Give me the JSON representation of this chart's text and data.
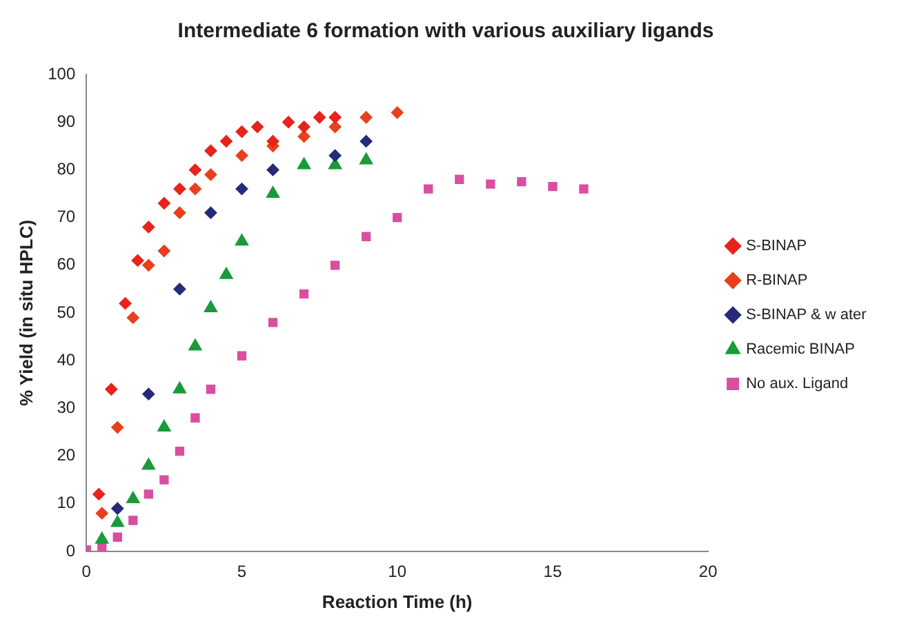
{
  "chart_data": {
    "type": "scatter",
    "title": "Intermediate 6 formation with various auxiliary ligands",
    "xlabel": "Reaction Time (h)",
    "ylabel": "% Yield (in situ HPLC)",
    "xlim": [
      0,
      20
    ],
    "xticks": [
      0,
      5,
      10,
      15,
      20
    ],
    "ylim": [
      0,
      100
    ],
    "yticks": [
      0,
      10,
      20,
      30,
      40,
      50,
      60,
      70,
      80,
      90,
      100
    ],
    "grid": false,
    "legend": "right",
    "series": [
      {
        "name": "S-BINAP",
        "color": "#e8231c",
        "marker": "diamond",
        "x": [
          0.4,
          0.8,
          1.25,
          1.65,
          2,
          2.5,
          3,
          3.5,
          4,
          4.5,
          5,
          5.5,
          6,
          6.5,
          7,
          7.5,
          8
        ],
        "values": [
          12,
          34,
          52,
          61,
          68,
          73,
          76,
          80,
          84,
          86,
          88,
          89,
          86,
          90,
          89,
          91,
          91
        ]
      },
      {
        "name": "R-BINAP",
        "color": "#e8401c",
        "marker": "diamond",
        "x": [
          0.5,
          1,
          1.5,
          2,
          2.5,
          3,
          3.5,
          4,
          5,
          6,
          7,
          8,
          9,
          10
        ],
        "values": [
          8,
          26,
          49,
          60,
          63,
          71,
          76,
          79,
          83,
          85,
          87,
          89,
          91,
          92
        ]
      },
      {
        "name": "S-BINAP & w ater",
        "color": "#262a7a",
        "marker": "diamond",
        "x": [
          1,
          2,
          3,
          4,
          5,
          6,
          8,
          9
        ],
        "values": [
          9,
          33,
          55,
          71,
          76,
          80,
          83,
          86
        ]
      },
      {
        "name": "Racemic BINAP",
        "color": "#1a9a3a",
        "marker": "triangle",
        "x": [
          0.5,
          1,
          1.5,
          2,
          2.5,
          3,
          3.5,
          4,
          4.5,
          5,
          6,
          7,
          8,
          9
        ],
        "values": [
          2.5,
          6,
          11,
          18,
          26,
          34,
          43,
          51,
          58,
          65,
          75,
          81,
          81,
          82
        ]
      },
      {
        "name": "No aux. Ligand",
        "color": "#d94fa0",
        "marker": "square",
        "x": [
          0,
          0.5,
          1,
          1.5,
          2,
          2.5,
          3,
          3.5,
          4,
          5,
          6,
          7,
          8,
          9,
          10,
          11,
          12,
          13,
          14,
          15,
          16
        ],
        "values": [
          0.3,
          1,
          3,
          6.5,
          12,
          15,
          21,
          28,
          34,
          41,
          48,
          54,
          60,
          66,
          70,
          76,
          78,
          77,
          77.5,
          76.5,
          76
        ]
      }
    ]
  }
}
